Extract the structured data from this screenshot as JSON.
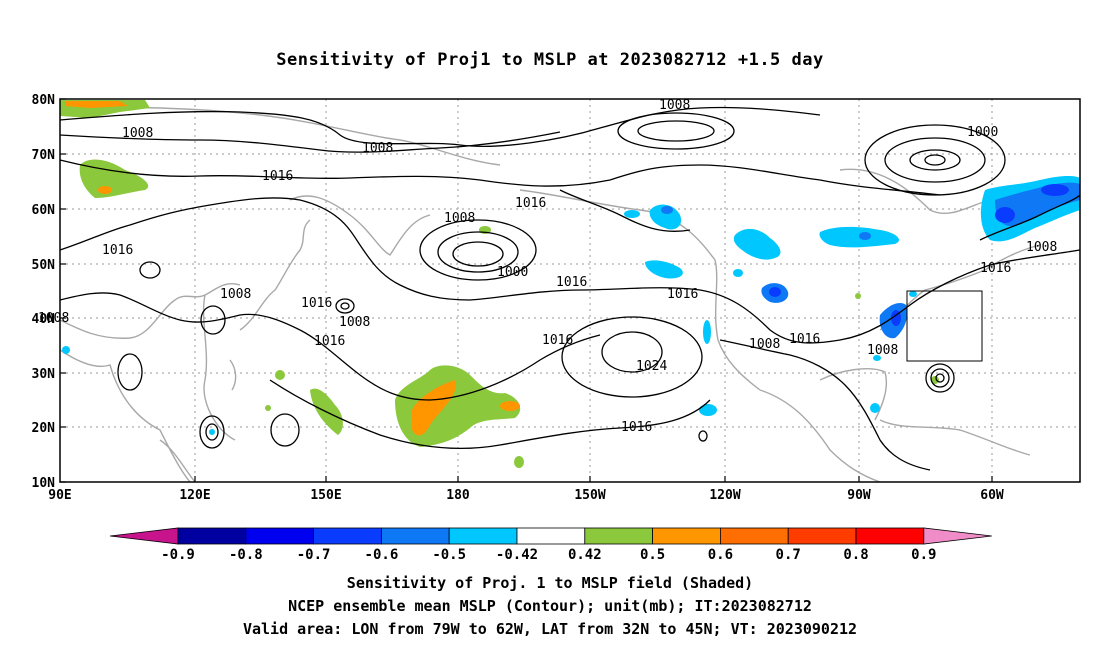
{
  "title": "Sensitivity of Proj1 to MSLP at 2023082712 +1.5 day",
  "map": {
    "lat_labels": [
      "80N",
      "70N",
      "60N",
      "50N",
      "40N",
      "30N",
      "20N",
      "10N"
    ],
    "lon_labels": [
      "90E",
      "120E",
      "150E",
      "180",
      "150W",
      "120W",
      "90W",
      "60W"
    ],
    "contour_labels": [
      "1008",
      "1008",
      "1008",
      "1016",
      "1016",
      "1008",
      "1016",
      "1000",
      "1016",
      "1016",
      "1008",
      "1016",
      "1008",
      "1008",
      "1016",
      "1016",
      "1016",
      "1024",
      "1008",
      "1016",
      "1000",
      "1008",
      "1016",
      "1008",
      "1016"
    ],
    "valid_area_box": true
  },
  "colorbar": {
    "ticks": [
      "-0.9",
      "-0.8",
      "-0.7",
      "-0.6",
      "-0.5",
      "-0.42",
      "0.42",
      "0.5",
      "0.6",
      "0.7",
      "0.8",
      "0.9"
    ],
    "colors": [
      "#0000a0",
      "#0000f0",
      "#0a3cff",
      "#0f78f5",
      "#00c8ff",
      "#ffffff",
      "#8cc83c",
      "#ff9600",
      "#ff6e00",
      "#ff3c00",
      "#ff0000"
    ],
    "under_color": "#c8148c",
    "over_color": "#f08cc8"
  },
  "footer": {
    "line1": "Sensitivity of Proj. 1 to MSLP field (Shaded)",
    "line2": "NCEP ensemble mean MSLP (Contour); unit(mb); IT:2023082712",
    "line3": "Valid area: LON from 79W to 62W, LAT from 32N to 45N; VT: 2023090212"
  }
}
